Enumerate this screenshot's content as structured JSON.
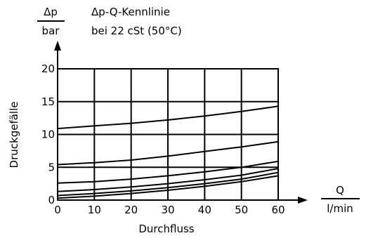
{
  "chart_data": {
    "type": "line",
    "title": "Δp-Q-Kennlinie",
    "subtitle": "bei 22 cSt (50°C)",
    "y_unit_top": "Δp",
    "y_unit_bottom": "bar",
    "x_unit_top": "Q",
    "x_unit_bottom": "l/min",
    "ylabel": "Druckgefälle",
    "xlabel": "Durchfluss",
    "xlim": [
      0,
      60
    ],
    "ylim": [
      0,
      20
    ],
    "x_ticks": [
      "0",
      "10",
      "20",
      "30",
      "40",
      "50",
      "60"
    ],
    "y_ticks": [
      "0",
      "5",
      "10",
      "15",
      "20"
    ],
    "grid": true,
    "x": [
      0,
      10,
      20,
      30,
      40,
      50,
      60
    ],
    "series": [
      {
        "values": [
          10.9,
          11.3,
          11.7,
          12.2,
          12.8,
          13.5,
          14.3
        ]
      },
      {
        "values": [
          5.4,
          5.7,
          6.1,
          6.7,
          7.4,
          8.1,
          8.9
        ]
      },
      {
        "values": [
          2.6,
          2.8,
          3.2,
          3.7,
          4.3,
          5.0,
          5.9
        ]
      },
      {
        "values": [
          1.3,
          1.6,
          2.0,
          2.5,
          3.1,
          3.8,
          4.8
        ]
      },
      {
        "values": [
          0.7,
          1.0,
          1.4,
          1.9,
          2.5,
          3.2,
          4.2
        ]
      },
      {
        "values": [
          0.3,
          0.6,
          1.0,
          1.5,
          2.1,
          2.8,
          3.7
        ]
      }
    ]
  }
}
